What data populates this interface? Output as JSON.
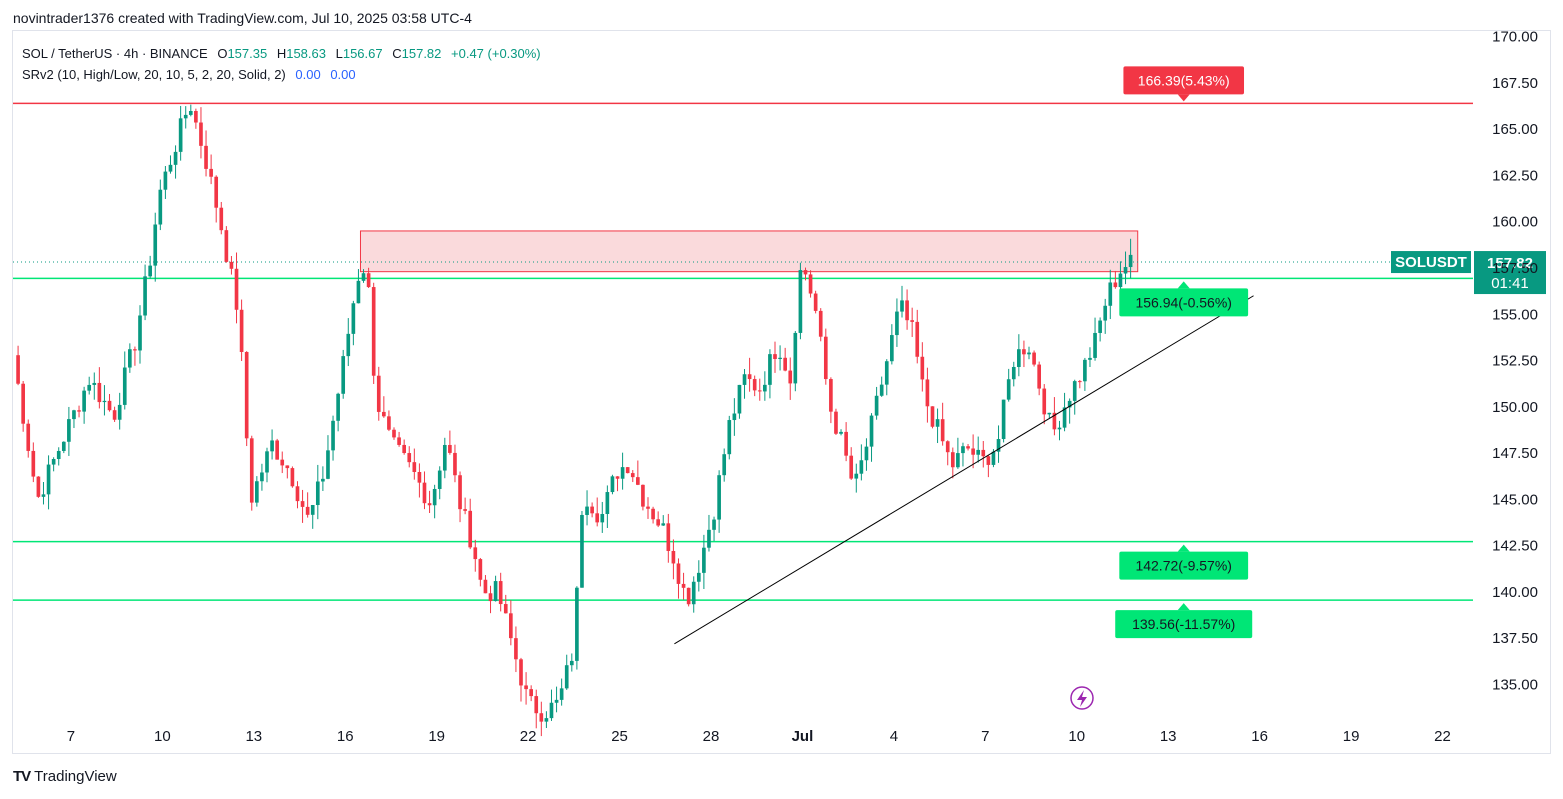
{
  "header": {
    "credit": "novintrader1376 created with TradingView.com, Jul 10, 2025 03:58 UTC-4"
  },
  "legend": {
    "symbol": "SOL / TetherUS · 4h · BINANCE",
    "open_label": "O",
    "open": "157.35",
    "high_label": "H",
    "high": "158.63",
    "low_label": "L",
    "low": "156.67",
    "close_label": "C",
    "close": "157.82",
    "change": "+0.47 (+0.30%)",
    "indicator": "SRv2 (10, High/Low, 20, 10, 5, 2, 20, Solid, 2)",
    "ind_value_1": "0.00",
    "ind_value_2": "0.00"
  },
  "footer": {
    "logo_mark": "TV",
    "logo_text": "TradingView"
  },
  "colors": {
    "up": "#089981",
    "down": "#f23645",
    "support": "#00e676",
    "resistance": "#f23645",
    "zone_fill": "#f9d3d6",
    "zone_border": "#f23645",
    "axis_text": "#131722",
    "trendline": "#000000"
  },
  "chart_data": {
    "type": "candlestick",
    "symbol": "SOLUSDT",
    "interval": "4h",
    "ylim": [
      133.3,
      170.3
    ],
    "y_ticks": [
      "135.00",
      "137.50",
      "140.00",
      "142.50",
      "145.00",
      "147.50",
      "150.00",
      "152.50",
      "155.00",
      "157.50",
      "160.00",
      "162.50",
      "165.00",
      "167.50",
      "170.00"
    ],
    "x_ticks": [
      "7",
      "10",
      "13",
      "16",
      "19",
      "22",
      "25",
      "28",
      "Jul",
      "4",
      "7",
      "10",
      "13",
      "16",
      "19",
      "22"
    ],
    "x_tick_days": [
      7,
      10,
      13,
      16,
      19,
      22,
      25,
      28,
      31,
      34,
      37,
      40,
      43,
      46,
      49,
      52
    ],
    "x_range_days": [
      5.1,
      53.0
    ],
    "last_price": {
      "label": "SOLUSDT",
      "value": "157.82",
      "countdown": "01:41",
      "price": 157.82
    },
    "levels": [
      {
        "price": 166.39,
        "label": "166.39(5.43%)",
        "kind": "resistance"
      },
      {
        "price": 156.94,
        "label": "156.94(-0.56%)",
        "kind": "support"
      },
      {
        "price": 142.72,
        "label": "142.72(-9.57%)",
        "kind": "support"
      },
      {
        "price": 139.56,
        "label": "139.56(-11.57%)",
        "kind": "support"
      }
    ],
    "zone": {
      "from_day": 16.5,
      "to_day": 42.0,
      "top": 159.5,
      "bottom": 157.3
    },
    "trendline": {
      "from": {
        "day": 26.8,
        "price": 137.2
      },
      "to": {
        "day": 45.8,
        "price": 156.0
      }
    },
    "flash_icon": "lightning-icon",
    "swing_path": [
      [
        5.1,
        152.8
      ],
      [
        5.9,
        145.0
      ],
      [
        6.8,
        148.5
      ],
      [
        7.6,
        151.5
      ],
      [
        8.4,
        149.5
      ],
      [
        9.1,
        153.5
      ],
      [
        9.6,
        158.0
      ],
      [
        9.9,
        161.5
      ],
      [
        10.4,
        164.0
      ],
      [
        10.9,
        166.5
      ],
      [
        11.4,
        163.5
      ],
      [
        11.9,
        160.0
      ],
      [
        12.5,
        155.0
      ],
      [
        12.9,
        145.0
      ],
      [
        13.6,
        148.0
      ],
      [
        14.2,
        146.5
      ],
      [
        14.8,
        143.8
      ],
      [
        15.3,
        146.5
      ],
      [
        15.9,
        152.0
      ],
      [
        16.4,
        157.0
      ],
      [
        16.7,
        157.8
      ],
      [
        17.0,
        150.5
      ],
      [
        17.5,
        148.0
      ],
      [
        18.2,
        146.5
      ],
      [
        18.8,
        144.8
      ],
      [
        19.3,
        148.3
      ],
      [
        19.8,
        144.5
      ],
      [
        20.2,
        142.5
      ],
      [
        20.5,
        140.0
      ],
      [
        21.0,
        140.0
      ],
      [
        21.5,
        137.0
      ],
      [
        22.0,
        134.0
      ],
      [
        22.5,
        133.5
      ],
      [
        23.0,
        134.0
      ],
      [
        23.5,
        137.0
      ],
      [
        23.8,
        145.5
      ],
      [
        24.4,
        144.0
      ],
      [
        24.9,
        146.5
      ],
      [
        25.3,
        147.0
      ],
      [
        25.8,
        145.0
      ],
      [
        26.4,
        143.5
      ],
      [
        26.8,
        141.8
      ],
      [
        27.2,
        139.5
      ],
      [
        27.7,
        142.0
      ],
      [
        28.1,
        144.5
      ],
      [
        28.6,
        149.0
      ],
      [
        29.1,
        151.5
      ],
      [
        29.6,
        151.0
      ],
      [
        30.2,
        153.5
      ],
      [
        30.6,
        151.5
      ],
      [
        30.9,
        157.0
      ],
      [
        31.0,
        157.8
      ],
      [
        31.4,
        155.5
      ],
      [
        31.9,
        150.0
      ],
      [
        32.3,
        148.0
      ],
      [
        32.7,
        145.5
      ],
      [
        33.2,
        148.5
      ],
      [
        33.7,
        152.0
      ],
      [
        34.2,
        155.5
      ],
      [
        34.6,
        154.0
      ],
      [
        35.0,
        150.5
      ],
      [
        35.5,
        148.5
      ],
      [
        35.9,
        146.8
      ],
      [
        36.4,
        147.8
      ],
      [
        36.9,
        147.0
      ],
      [
        37.4,
        148.0
      ],
      [
        37.9,
        152.5
      ],
      [
        38.4,
        153.5
      ],
      [
        38.8,
        151.0
      ],
      [
        39.2,
        148.5
      ],
      [
        39.7,
        150.5
      ],
      [
        40.2,
        152.0
      ],
      [
        40.6,
        153.5
      ],
      [
        41.0,
        156.0
      ],
      [
        41.5,
        157.6
      ],
      [
        41.9,
        157.8
      ]
    ]
  }
}
